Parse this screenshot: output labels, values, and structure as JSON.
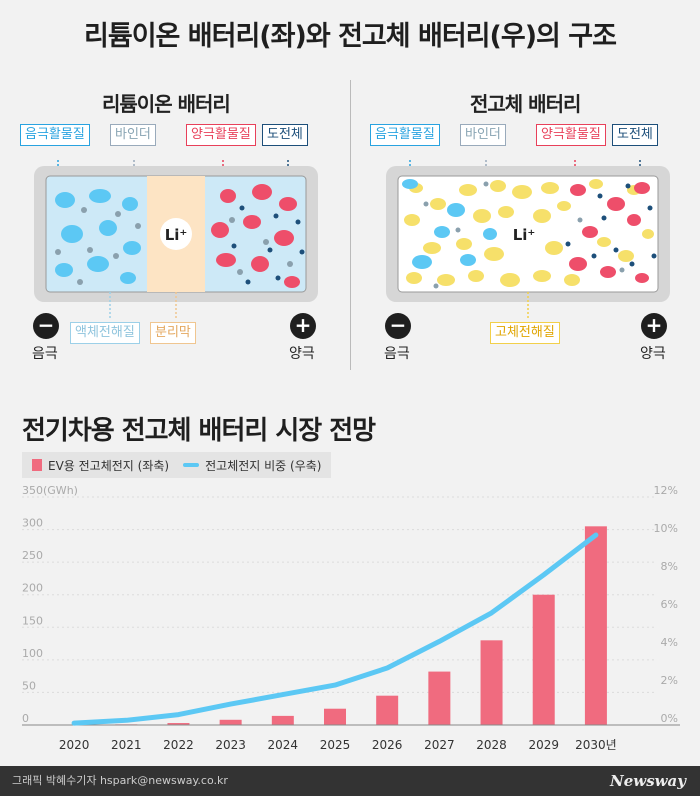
{
  "main_title": "리튬이온 배터리(좌)와 전고체 배터리(우)의 구조",
  "left_panel": {
    "title": "리튬이온 배터리",
    "tags": {
      "active_neg": "음극활물질",
      "binder": "바인더",
      "active_pos": "양극활물질",
      "conductor": "도전체",
      "electrolyte": "액체전해질",
      "separator": "분리막"
    },
    "ion": "Li⁺",
    "minus": "−",
    "plus": "+",
    "neg_label": "음극",
    "pos_label": "양극"
  },
  "right_panel": {
    "title": "전고체 배터리",
    "tags": {
      "active_neg": "음극활물질",
      "binder": "바인더",
      "active_pos": "양극활물질",
      "conductor": "도전체",
      "electrolyte": "고체전해질"
    },
    "ion": "Li⁺",
    "minus": "−",
    "plus": "+",
    "neg_label": "음극",
    "pos_label": "양극"
  },
  "chart_title": "전기차용 전고체 배터리 시장 전망",
  "legend": {
    "bar_label": "EV용 전고체전지 (좌축)",
    "line_label": "전고체전지 비중 (우축)"
  },
  "colors": {
    "bar": "#f06b7f",
    "line": "#5cc8f4"
  },
  "chart_data": {
    "type": "bar",
    "categories": [
      "2020",
      "2021",
      "2022",
      "2023",
      "2024",
      "2025",
      "2026",
      "2027",
      "2028",
      "2029",
      "2030년"
    ],
    "series": [
      {
        "name": "EV용 전고체전지 (좌축)",
        "type": "bar",
        "axis": "left",
        "values": [
          0.5,
          1,
          3,
          8,
          14,
          25,
          45,
          82,
          130,
          200,
          305
        ]
      },
      {
        "name": "전고체전지 비중 (우축)",
        "type": "line",
        "axis": "right",
        "values": [
          0.1,
          0.25,
          0.55,
          1.1,
          1.6,
          2.1,
          3.0,
          4.4,
          5.9,
          7.9,
          10.0
        ]
      }
    ],
    "y_left": {
      "ylim": [
        0,
        350
      ],
      "ticks": [
        0,
        50,
        100,
        150,
        200,
        250,
        300,
        350
      ],
      "tick_labels": [
        "0",
        "50",
        "100",
        "150",
        "200",
        "250",
        "300",
        "350(GWh)"
      ]
    },
    "y_right": {
      "ylim": [
        0,
        12
      ],
      "ticks": [
        0,
        2,
        4,
        6,
        8,
        10,
        12
      ],
      "tick_labels": [
        "0%",
        "2%",
        "4%",
        "6%",
        "8%",
        "10%",
        "12%"
      ]
    },
    "grid": true
  },
  "footer": {
    "credit": "그래픽 박혜수기자 hspark@newsway.co.kr",
    "logo": "Newsway"
  }
}
